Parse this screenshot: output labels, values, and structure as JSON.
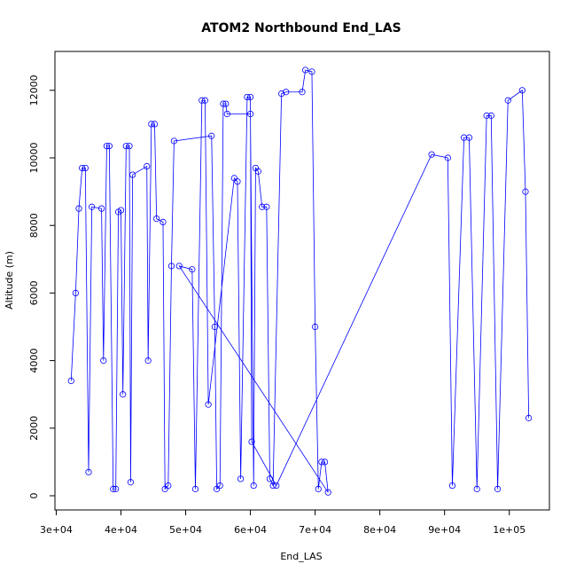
{
  "chart_data": {
    "type": "scatter",
    "title": "ATOM2 Northbound End_LAS",
    "xlabel": "End_LAS",
    "ylabel": "Altitude (m)",
    "connect": true,
    "marker": "open-circle",
    "series": [
      {
        "color": "#0000ff",
        "x": [
          32300,
          33000,
          33500,
          34000,
          34500,
          35000,
          35500,
          37000,
          37300,
          37800,
          38200,
          38800,
          39200,
          39600,
          40000,
          40300,
          40800,
          41300,
          41500,
          41800,
          44000,
          44200,
          44700,
          45200,
          45500,
          46500,
          46800,
          47300,
          47800,
          48200,
          54000,
          54500,
          54800,
          55300,
          55800,
          56200,
          56400,
          60000,
          60500,
          60800,
          61200,
          61800,
          62500,
          63000,
          63500,
          64800,
          65500,
          68000,
          68500,
          69500,
          70000,
          70500,
          71000,
          71500,
          72000,
          49000,
          51000,
          51500,
          52500,
          53000,
          53500,
          57500,
          58000,
          58500,
          59500,
          60000,
          60200,
          64000,
          88000,
          90500,
          91200,
          93000,
          93800,
          95000,
          96500,
          97200,
          98200,
          99800,
          102000,
          102500,
          103000
        ],
        "values": [
          3400,
          6000,
          8500,
          9700,
          9700,
          700,
          8550,
          8500,
          4000,
          10350,
          10350,
          200,
          200,
          8400,
          8450,
          3000,
          10350,
          10350,
          400,
          9500,
          9750,
          4000,
          11000,
          11000,
          8200,
          8100,
          200,
          300,
          6800,
          10500,
          10650,
          5000,
          200,
          300,
          11600,
          11600,
          11300,
          11300,
          300,
          9700,
          9600,
          8550,
          8550,
          500,
          300,
          11900,
          11950,
          11950,
          12600,
          12550,
          5000,
          200,
          1000,
          1000,
          100,
          6800,
          6700,
          200,
          11700,
          11700,
          2700,
          9400,
          9300,
          500,
          11800,
          11800,
          1600,
          300,
          10100,
          10000,
          300,
          10600,
          10600,
          200,
          11250,
          11250,
          200,
          11700,
          12000,
          9000,
          2300
        ]
      }
    ],
    "xlim": [
      29800,
      106200
    ],
    "ylim": [
      -420,
      13150
    ],
    "xticks": [
      {
        "value": 30000,
        "label": "3e+04"
      },
      {
        "value": 40000,
        "label": "4e+04"
      },
      {
        "value": 50000,
        "label": "5e+04"
      },
      {
        "value": 60000,
        "label": "6e+04"
      },
      {
        "value": 70000,
        "label": "7e+04"
      },
      {
        "value": 80000,
        "label": "8e+04"
      },
      {
        "value": 90000,
        "label": "9e+04"
      },
      {
        "value": 100000,
        "label": "1e+05"
      }
    ],
    "yticks": [
      0,
      2000,
      4000,
      6000,
      8000,
      10000,
      12000
    ]
  }
}
